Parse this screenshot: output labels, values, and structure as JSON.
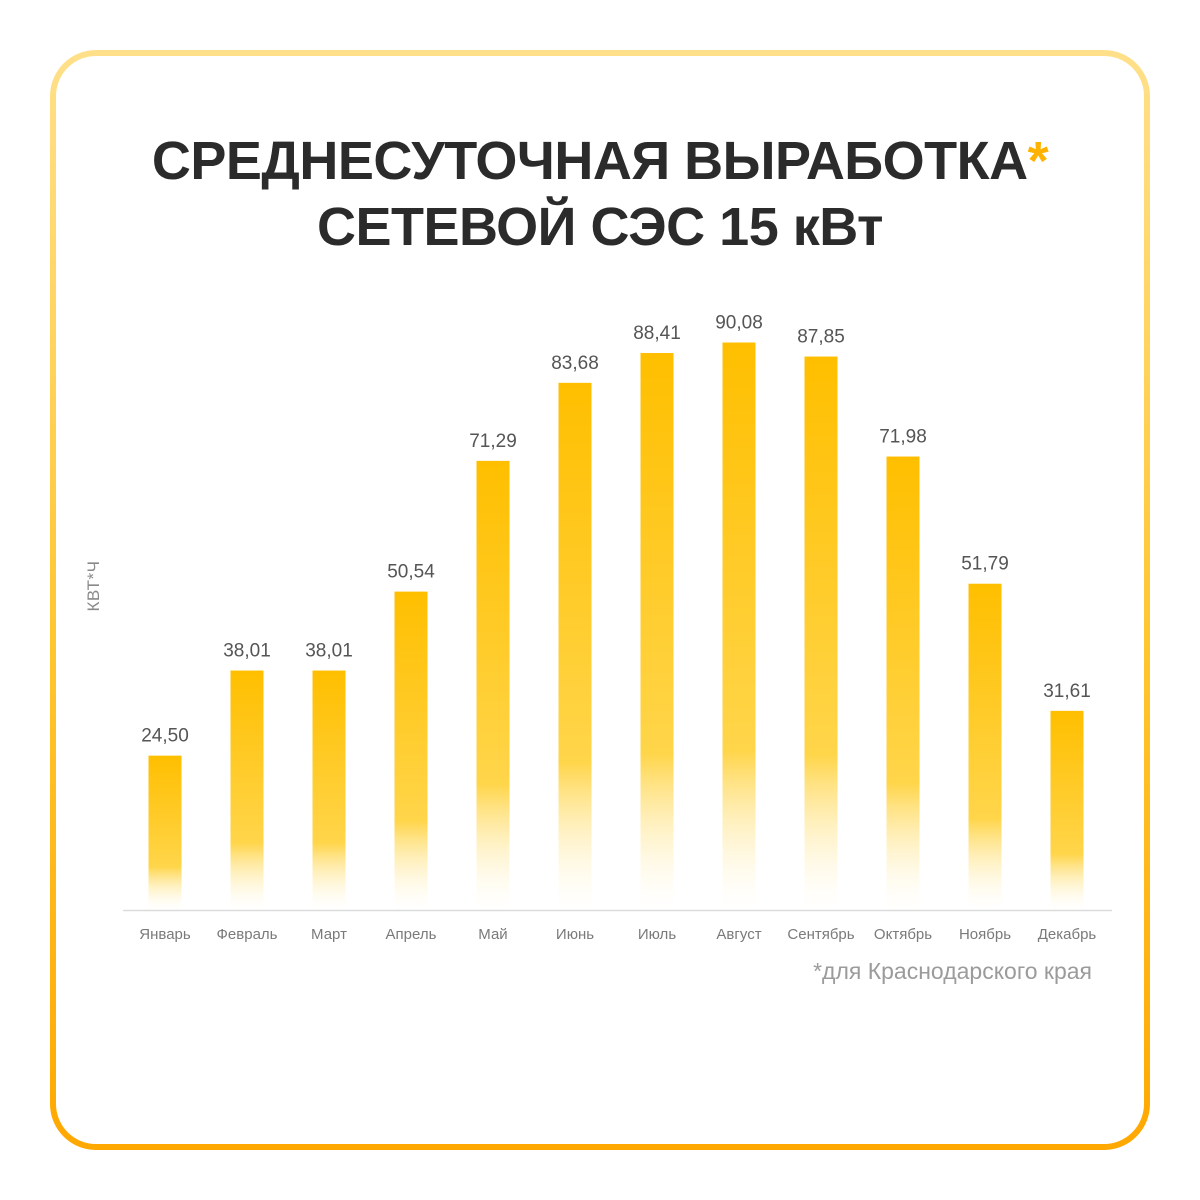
{
  "title": {
    "line1": "СРЕДНЕСУТОЧНАЯ ВЫРАБОТКА",
    "asterisk": "*",
    "line2": "СЕТЕВОЙ СЭС 15 кВт"
  },
  "footnote": "*для Краснодарского края",
  "colors": {
    "bar_top": "#ffbf00",
    "bar_mid": "#ffd54a",
    "bar_bottom": "#ffffff",
    "accent": "#ffb300",
    "frame": "#ffc52e"
  },
  "chart_data": {
    "type": "bar",
    "title": "СРЕДНЕСУТОЧНАЯ ВЫРАБОТКА* СЕТЕВОЙ СЭС 15 кВт",
    "ylabel": "КВТ*Ч",
    "xlabel": "",
    "ylim": [
      0,
      100
    ],
    "grid": false,
    "categories": [
      "Январь",
      "Февраль",
      "Март",
      "Апрель",
      "Май",
      "Июнь",
      "Июль",
      "Август",
      "Сентябрь",
      "Октябрь",
      "Ноябрь",
      "Декабрь"
    ],
    "values": [
      24.5,
      38.01,
      38.01,
      50.54,
      71.29,
      83.68,
      88.41,
      90.08,
      87.85,
      71.98,
      51.79,
      31.61
    ],
    "value_labels": [
      "24,50",
      "38,01",
      "38,01",
      "50,54",
      "71,29",
      "83,68",
      "88,41",
      "90,08",
      "87,85",
      "71,98",
      "51,79",
      "31,61"
    ]
  }
}
